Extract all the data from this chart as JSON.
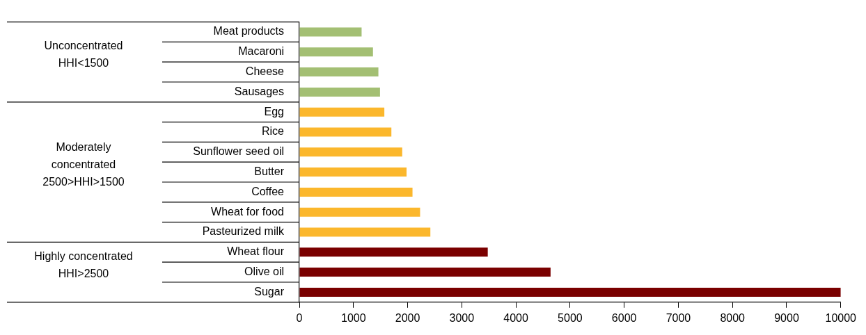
{
  "chart_data": {
    "type": "bar",
    "orientation": "horizontal",
    "categories": [
      "Meat products",
      "Macaroni",
      "Cheese",
      "Sausages",
      "Egg",
      "Rice",
      "Sunflower seed oil",
      "Butter",
      "Coffee",
      "Wheat for food",
      "Pasteurized milk",
      "Wheat flour",
      "Olive oil",
      "Sugar"
    ],
    "values": [
      1150,
      1360,
      1460,
      1490,
      1570,
      1700,
      1900,
      1980,
      2090,
      2230,
      2420,
      3480,
      4640,
      10000
    ],
    "colors": [
      "#a3bf73",
      "#a3bf73",
      "#a3bf73",
      "#a3bf73",
      "#fbb72c",
      "#fbb72c",
      "#fbb72c",
      "#fbb72c",
      "#fbb72c",
      "#fbb72c",
      "#fbb72c",
      "#7a0000",
      "#7a0000",
      "#7a0000"
    ],
    "xlim": [
      0,
      10000
    ],
    "xticks": [
      0,
      1000,
      2000,
      3000,
      4000,
      5000,
      6000,
      7000,
      8000,
      9000,
      10000
    ],
    "grid": false,
    "legend": false,
    "annotations": [
      "Unconcentrated\nHHI<1500",
      "Moderately\nconcentrated\n2500>HHI>1500",
      "Highly concentrated\nHHI>2500"
    ]
  }
}
